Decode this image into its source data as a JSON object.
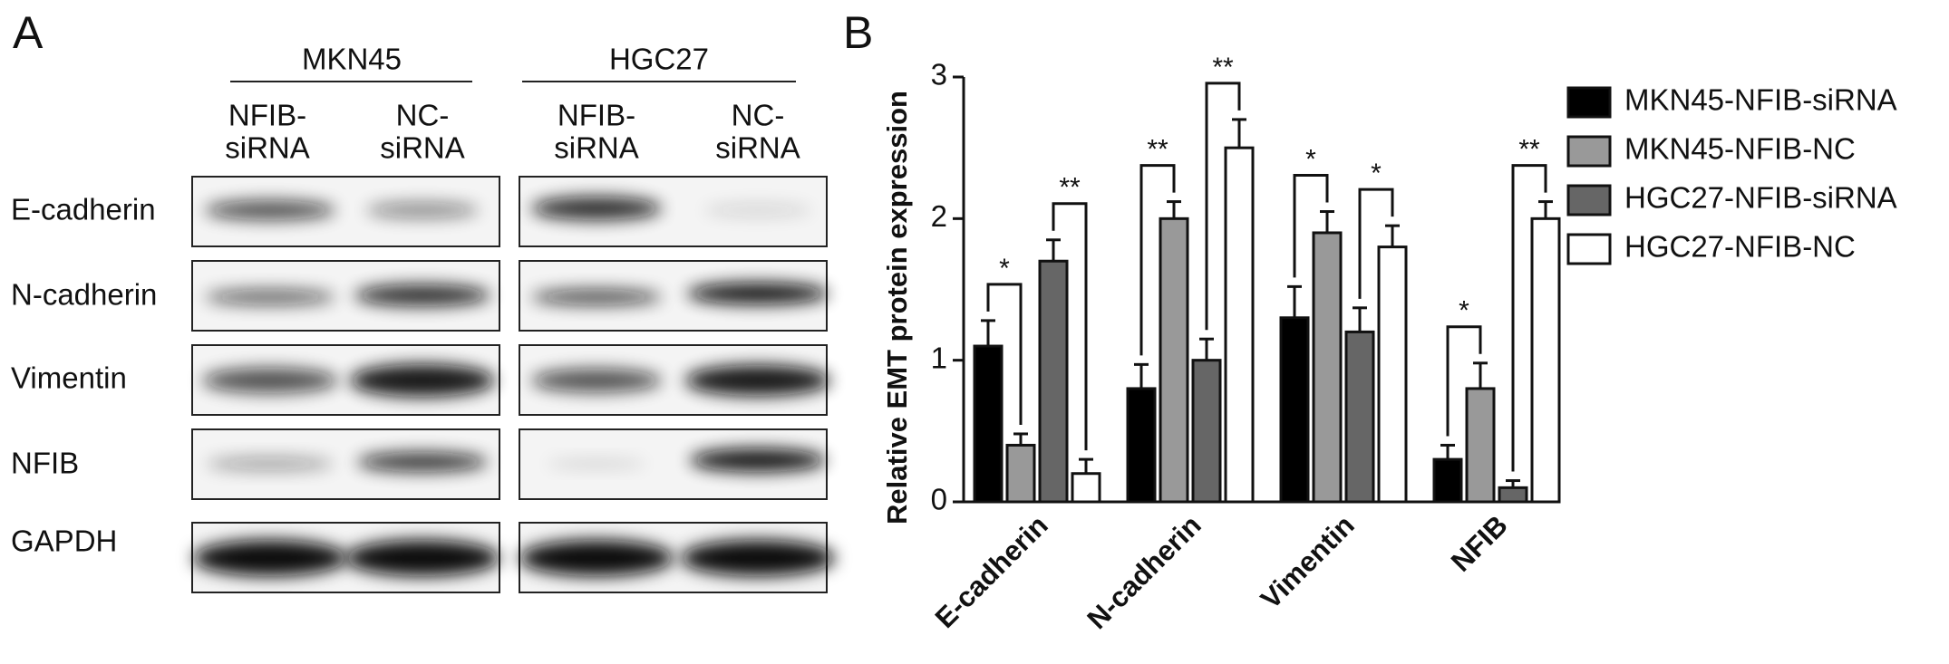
{
  "panel_a": {
    "label": "A",
    "groups": [
      "MKN45",
      "HGC27"
    ],
    "columns": [
      [
        "NFIB-",
        "siRNA"
      ],
      [
        "NC-",
        "siRNA"
      ],
      [
        "NFIB-",
        "siRNA"
      ],
      [
        "NC-",
        "siRNA"
      ]
    ],
    "rows": [
      "E-cadherin",
      "N-cadherin",
      "Vimentin",
      "NFIB",
      "GAPDH"
    ]
  },
  "chart_data": {
    "type": "bar",
    "label": "B",
    "y_label": "Relative EMT protein expression",
    "categories": [
      "E-cadherin",
      "N-cadherin",
      "Vimentin",
      "NFIB"
    ],
    "series": [
      {
        "name": "MKN45-NFIB-siRNA",
        "color": "#000000",
        "values": [
          1.1,
          0.8,
          1.3,
          0.3
        ],
        "errors": [
          0.18,
          0.17,
          0.22,
          0.1
        ]
      },
      {
        "name": "MKN45-NFIB-NC",
        "color": "#999999",
        "values": [
          0.4,
          2.0,
          1.9,
          0.8
        ],
        "errors": [
          0.08,
          0.12,
          0.15,
          0.18
        ]
      },
      {
        "name": "HGC27-NFIB-siRNA",
        "color": "#666666",
        "values": [
          1.7,
          1.0,
          1.2,
          0.1
        ],
        "errors": [
          0.15,
          0.15,
          0.17,
          0.05
        ]
      },
      {
        "name": "HGC27-NFIB-NC",
        "color": "#ffffff",
        "values": [
          0.2,
          2.5,
          1.8,
          2.0
        ],
        "errors": [
          0.1,
          0.2,
          0.15,
          0.12
        ]
      }
    ],
    "annotations": [
      [
        "*",
        "**"
      ],
      [
        "**",
        "**"
      ],
      [
        "*",
        "*"
      ],
      [
        "*",
        "**"
      ]
    ],
    "ylim": [
      0,
      3
    ],
    "yticks": [
      0,
      1,
      2,
      3
    ]
  }
}
